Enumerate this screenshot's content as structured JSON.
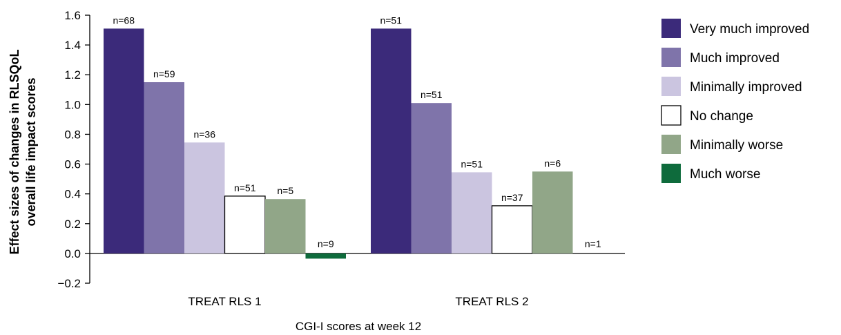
{
  "chart_data": {
    "type": "bar",
    "ylabel_line1": "Effect sizes of changes in RLSQoL",
    "ylabel_line2": "overall life impact scores",
    "xlabel": "CGI-I scores at week 12",
    "ylim": [
      -0.2,
      1.6
    ],
    "yticks": [
      "1.6",
      "1.4",
      "1.2",
      "1.0",
      "0.8",
      "0.6",
      "0.4",
      "0.2",
      "0.0",
      "−0.2"
    ],
    "categories": [
      "TREAT RLS 1",
      "TREAT RLS 2"
    ],
    "legend_position": "right",
    "series": [
      {
        "name": "Very much improved",
        "color": "#3b2a7a",
        "values": [
          1.51,
          1.51
        ],
        "labels": [
          "n=68",
          "n=51"
        ]
      },
      {
        "name": "Much improved",
        "color": "#7f74aa",
        "values": [
          1.15,
          1.01
        ],
        "labels": [
          "n=59",
          "n=51"
        ]
      },
      {
        "name": "Minimally improved",
        "color": "#cbc5e0",
        "values": [
          0.745,
          0.545
        ],
        "labels": [
          "n=36",
          "n=51"
        ]
      },
      {
        "name": "No change",
        "color": "#ffffff",
        "values": [
          0.385,
          0.32
        ],
        "labels": [
          "n=51",
          "n=37"
        ]
      },
      {
        "name": "Minimally worse",
        "color": "#91a688",
        "values": [
          0.365,
          0.55
        ],
        "labels": [
          "n=5",
          "n=6"
        ]
      },
      {
        "name": "Much worse",
        "color": "#0e6b3c",
        "values": [
          -0.035,
          0.0
        ],
        "labels": [
          "n=9",
          "n=1"
        ]
      }
    ]
  }
}
